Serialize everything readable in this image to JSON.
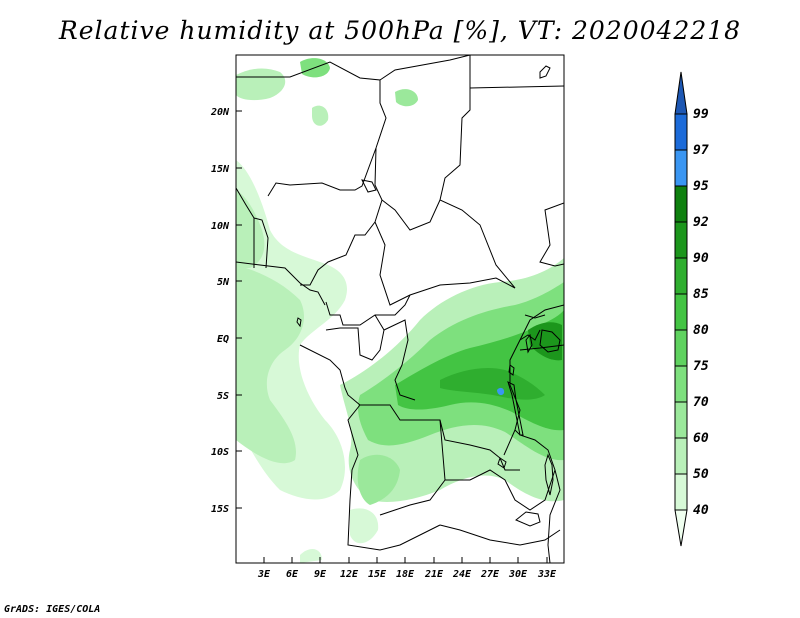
{
  "title": "Relative humidity at 500hPa [%], VT: 2020042218",
  "credit": "GrADS: IGES/COLA",
  "map": {
    "lat_labels": [
      "20N",
      "15N",
      "10N",
      "5N",
      "EQ",
      "5S",
      "10S",
      "15S"
    ],
    "lon_labels": [
      "3E",
      "6E",
      "9E",
      "12E",
      "15E",
      "18E",
      "21E",
      "24E",
      "27E",
      "30E",
      "33E"
    ]
  },
  "colorbar": {
    "levels": [
      "40",
      "50",
      "60",
      "70",
      "75",
      "80",
      "85",
      "90",
      "92",
      "95",
      "97",
      "99"
    ],
    "colors": [
      "#f0fff0",
      "#d7f9d7",
      "#b9f0b9",
      "#9be89b",
      "#7ee07e",
      "#5fd25f",
      "#43c443",
      "#2fae2f",
      "#1c961c",
      "#0f800f",
      "#3a96f2",
      "#1c6bd9",
      "#1d57b3"
    ]
  }
}
